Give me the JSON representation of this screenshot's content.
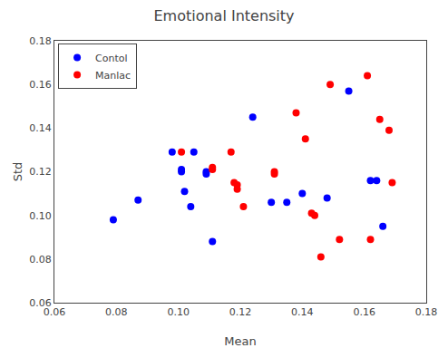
{
  "chart_data": {
    "type": "scatter",
    "title": "Emotional Intensity",
    "x_label": "Mean",
    "y_label": "Std",
    "xlim": [
      0.06,
      0.18
    ],
    "ylim": [
      0.06,
      0.18
    ],
    "xticks": [
      0.06,
      0.08,
      {
        "value": 0.1,
        "label": "0.10"
      },
      0.12,
      0.14,
      0.16,
      0.18
    ],
    "yticks": [
      0.06,
      0.08,
      {
        "value": 0.1,
        "label": "0.10"
      },
      0.12,
      0.14,
      0.16,
      0.18
    ],
    "grid": false,
    "legend": "upper left",
    "marker": "circle",
    "series": [
      {
        "name": "Contol",
        "color": "#0000ff",
        "x": [
          0.079,
          0.087,
          0.098,
          0.101,
          0.101,
          0.102,
          0.104,
          0.105,
          0.109,
          0.109,
          0.111,
          0.124,
          0.13,
          0.135,
          0.14,
          0.148,
          0.155,
          0.162,
          0.164,
          0.166
        ],
        "values": [
          0.098,
          0.107,
          0.129,
          0.121,
          0.12,
          0.111,
          0.104,
          0.129,
          0.12,
          0.119,
          0.088,
          0.145,
          0.106,
          0.106,
          0.11,
          0.108,
          0.157,
          0.116,
          0.116,
          0.095
        ]
      },
      {
        "name": "Manlac",
        "color": "#ff0000",
        "x": [
          0.101,
          0.111,
          0.111,
          0.117,
          0.118,
          0.119,
          0.119,
          0.121,
          0.131,
          0.131,
          0.138,
          0.141,
          0.143,
          0.144,
          0.146,
          0.149,
          0.152,
          0.161,
          0.162,
          0.165,
          0.168,
          0.169
        ],
        "values": [
          0.129,
          0.122,
          0.121,
          0.129,
          0.115,
          0.114,
          0.112,
          0.104,
          0.12,
          0.119,
          0.147,
          0.135,
          0.101,
          0.1,
          0.081,
          0.16,
          0.089,
          0.164,
          0.089,
          0.144,
          0.139,
          0.115
        ]
      }
    ]
  }
}
